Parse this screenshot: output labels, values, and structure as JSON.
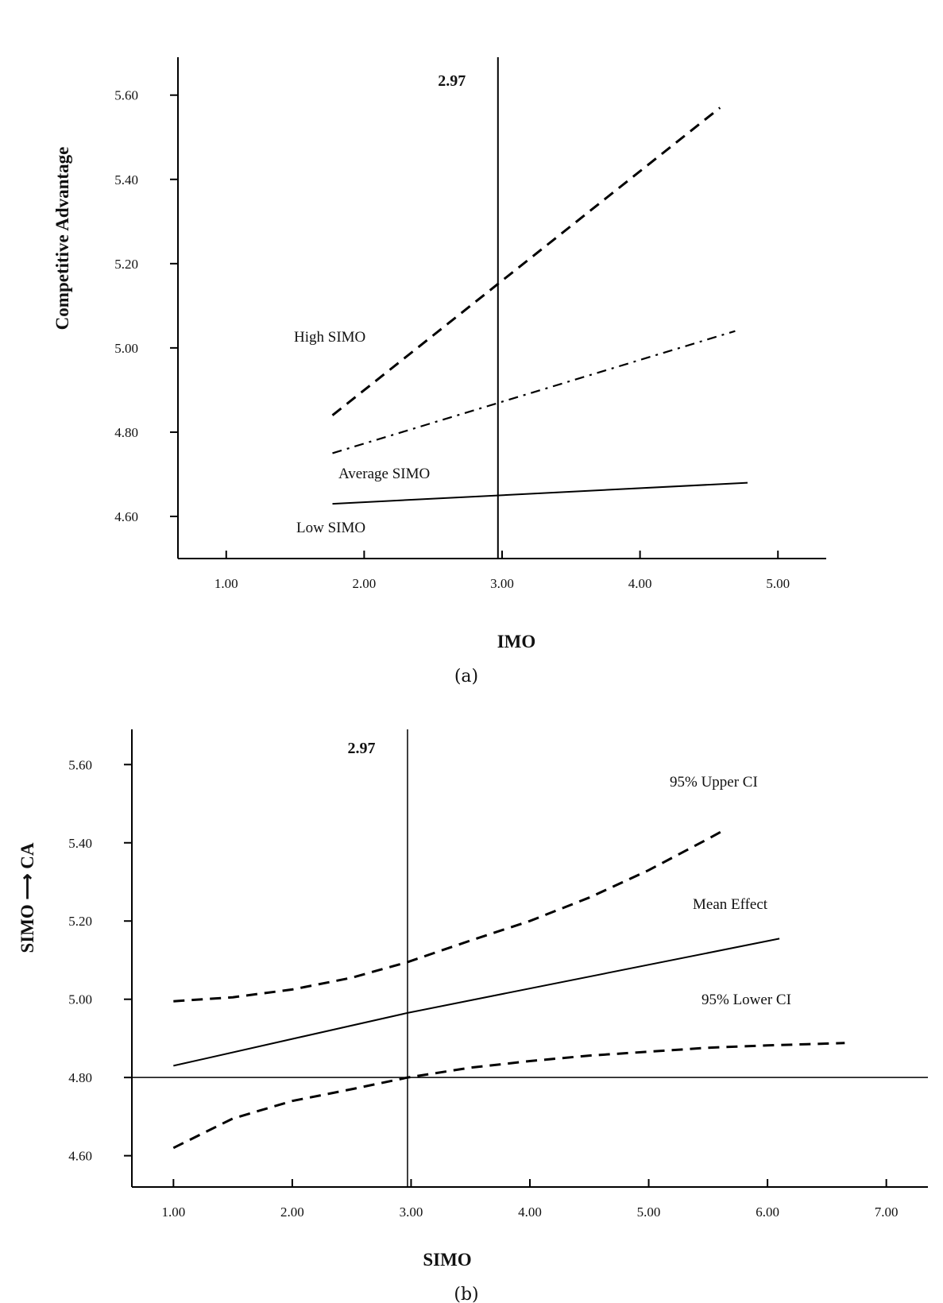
{
  "chart_data": [
    {
      "type": "line",
      "panel_label": "(a)",
      "xlabel": "IMO",
      "ylabel": "Competitive Advantage",
      "x_ticks": [
        "1.00",
        "2.00",
        "3.00",
        "4.00",
        "5.00"
      ],
      "y_ticks": [
        "4.60",
        "4.80",
        "5.00",
        "5.20",
        "5.40",
        "5.60"
      ],
      "xlim": [
        0.65,
        5.35
      ],
      "ylim": [
        4.5,
        5.69
      ],
      "reference_line": {
        "x": 2.97,
        "label": "2.97"
      },
      "series": [
        {
          "name": "High SIMO",
          "style": "dashed",
          "x": [
            1.77,
            4.58
          ],
          "y": [
            4.84,
            5.57
          ]
        },
        {
          "name": "Average SIMO",
          "style": "dash-dot",
          "x": [
            1.77,
            4.69
          ],
          "y": [
            4.75,
            5.04
          ]
        },
        {
          "name": "Low SIMO",
          "style": "solid",
          "x": [
            1.77,
            4.78
          ],
          "y": [
            4.63,
            4.68
          ]
        }
      ],
      "annotations": [
        "High SIMO",
        "Average SIMO",
        "Low SIMO"
      ],
      "grid": false
    },
    {
      "type": "line",
      "panel_label": "(b)",
      "xlabel": "SIMO",
      "ylabel": "SIMO ⟶ CA",
      "x_ticks": [
        "1.00",
        "2.00",
        "3.00",
        "4.00",
        "5.00",
        "6.00",
        "7.00"
      ],
      "y_ticks": [
        "4.60",
        "4.80",
        "5.00",
        "5.20",
        "5.40",
        "5.60"
      ],
      "xlim": [
        0.65,
        7.35
      ],
      "ylim": [
        4.52,
        5.69
      ],
      "reference_line": {
        "x": 2.97,
        "label": "2.97"
      },
      "horizontal_line": {
        "y": 4.8
      },
      "series": [
        {
          "name": "95% Upper CI",
          "style": "dashed",
          "x": [
            1.0,
            1.5,
            2.0,
            2.5,
            2.97,
            3.5,
            4.0,
            4.5,
            5.0,
            5.5,
            5.65
          ],
          "y": [
            4.995,
            5.005,
            5.025,
            5.055,
            5.095,
            5.15,
            5.2,
            5.26,
            5.33,
            5.41,
            5.435
          ]
        },
        {
          "name": "Mean Effect",
          "style": "solid",
          "x": [
            1.0,
            2.97,
            6.1
          ],
          "y": [
            4.83,
            4.965,
            5.155
          ]
        },
        {
          "name": "95% Lower CI",
          "style": "dashed",
          "x": [
            1.0,
            1.5,
            2.0,
            2.5,
            2.97,
            3.5,
            4.0,
            4.5,
            5.0,
            5.5,
            6.0,
            6.65
          ],
          "y": [
            4.62,
            4.695,
            4.74,
            4.77,
            4.8,
            4.825,
            4.842,
            4.856,
            4.866,
            4.876,
            4.882,
            4.888
          ]
        }
      ],
      "annotations": [
        "95% Upper CI",
        "Mean Effect",
        "95% Lower CI"
      ],
      "grid": false
    }
  ]
}
